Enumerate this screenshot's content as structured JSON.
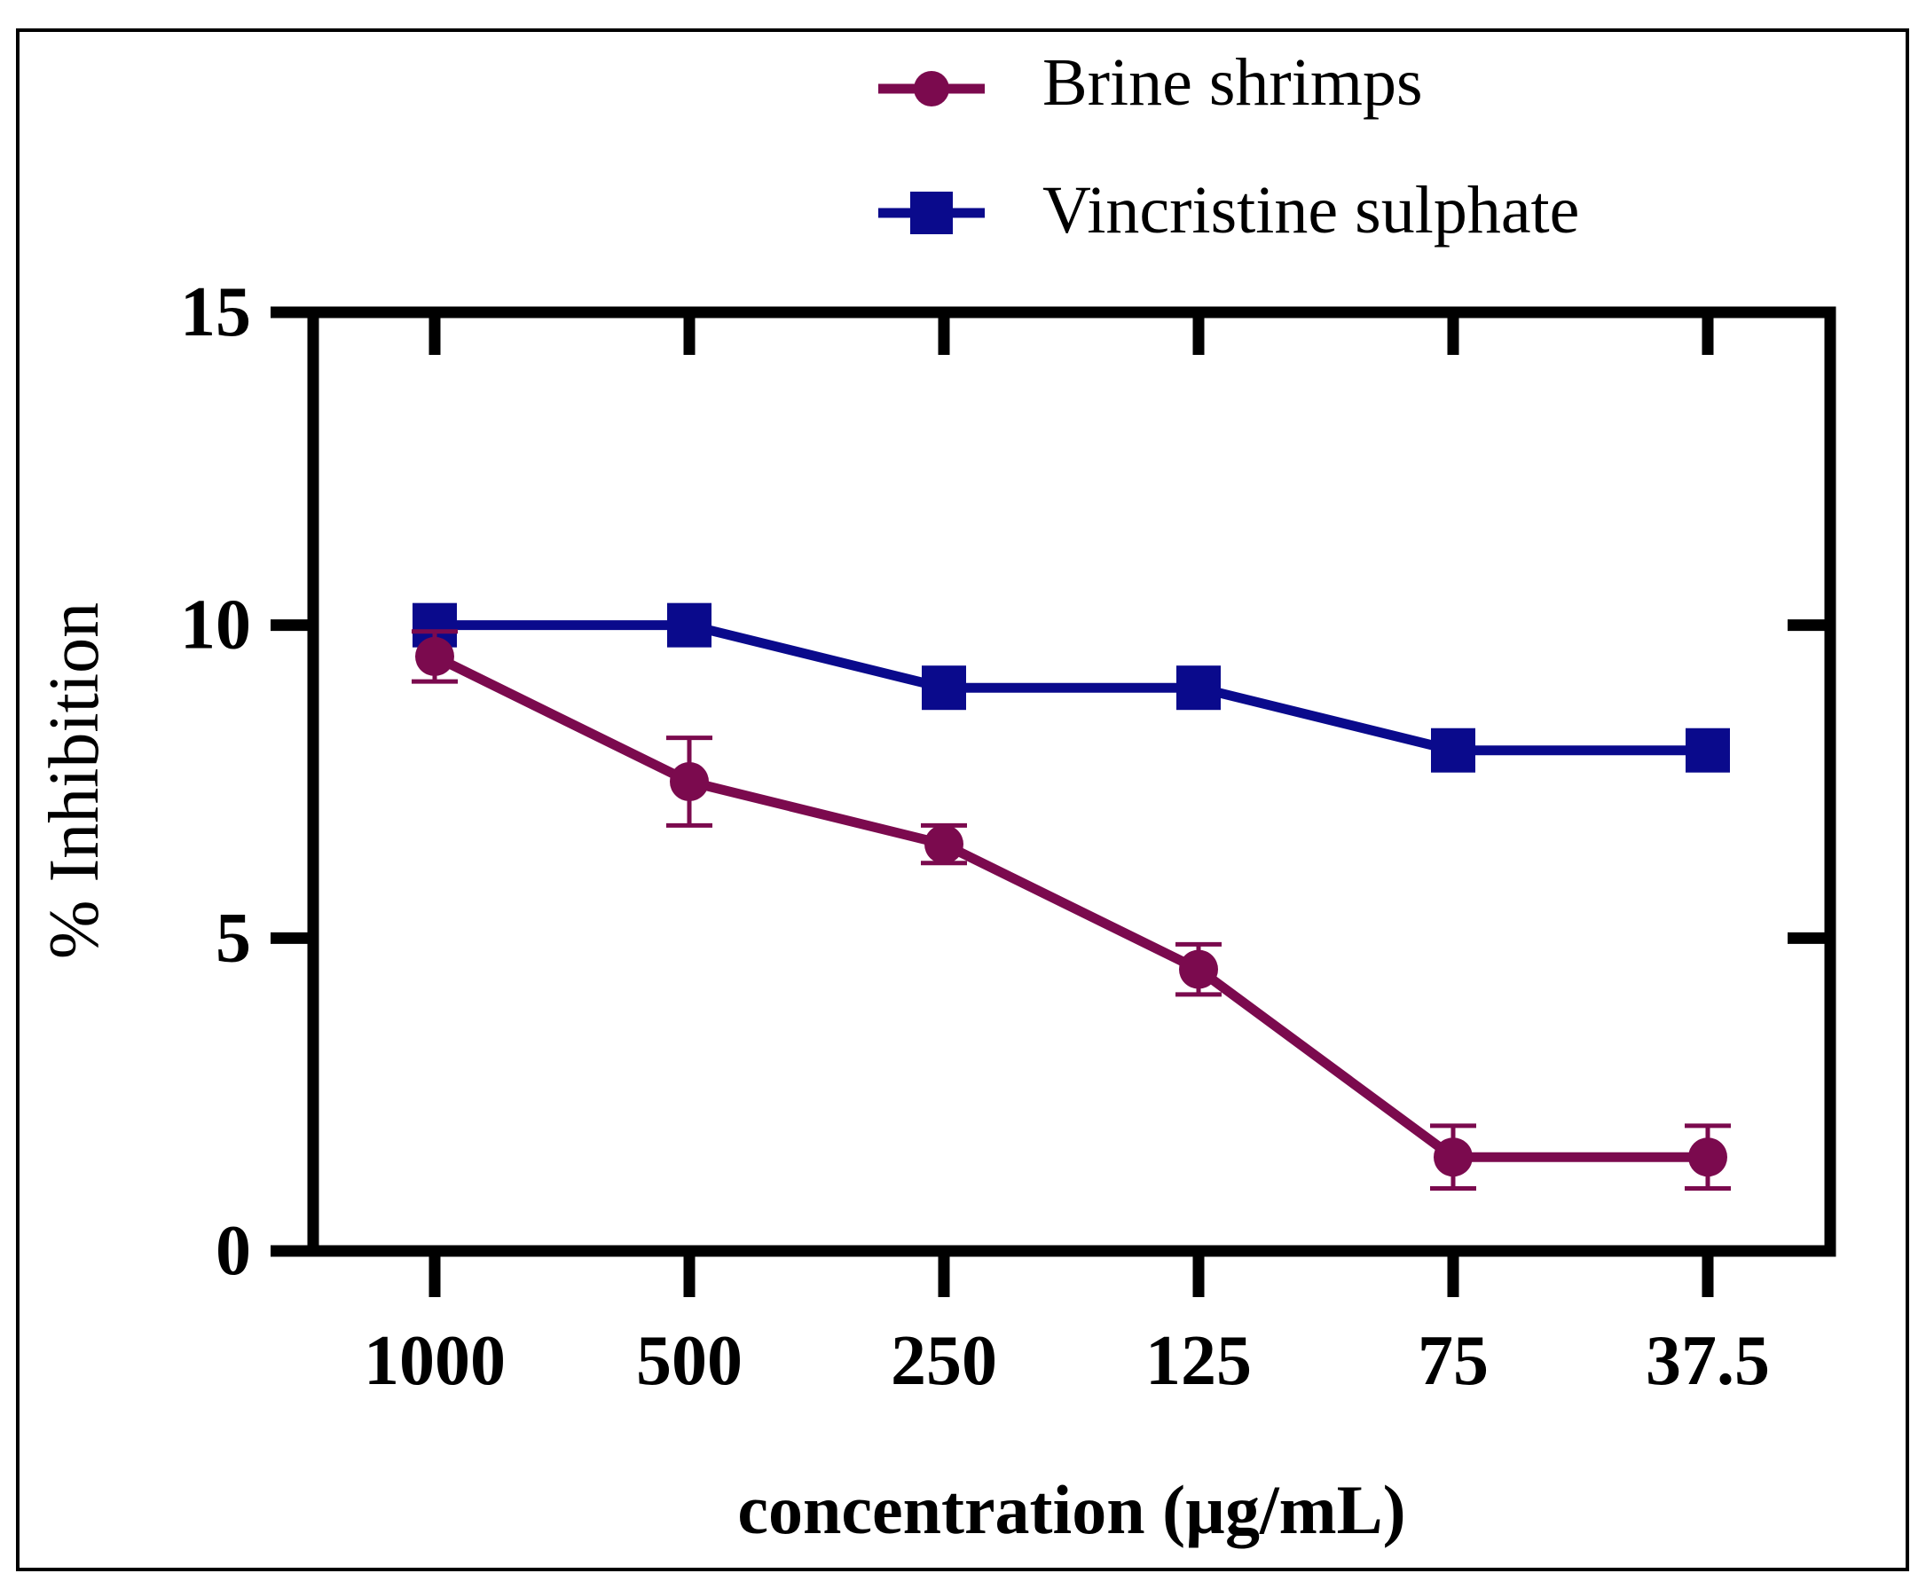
{
  "chart_data": {
    "type": "line",
    "title": "",
    "xlabel": "concentration (µg/mL)",
    "ylabel": "% Inhibition",
    "categories": [
      "1000",
      "500",
      "250",
      "125",
      "75",
      "37.5"
    ],
    "ylim": [
      0,
      15
    ],
    "yticks": [
      0,
      5,
      10,
      15
    ],
    "grid": false,
    "legend_position": "top-right",
    "series": [
      {
        "name": "Brine shrimps",
        "color": "#7b0a4e",
        "marker": "circle",
        "values": [
          9.5,
          7.5,
          6.5,
          4.5,
          1.5,
          1.5
        ],
        "errors": [
          0.4,
          0.7,
          0.3,
          0.4,
          0.5,
          0.5
        ]
      },
      {
        "name": "Vincristine sulphate",
        "color": "#0a0a8c",
        "marker": "square",
        "values": [
          10,
          10,
          9,
          9,
          8,
          8
        ]
      }
    ]
  }
}
